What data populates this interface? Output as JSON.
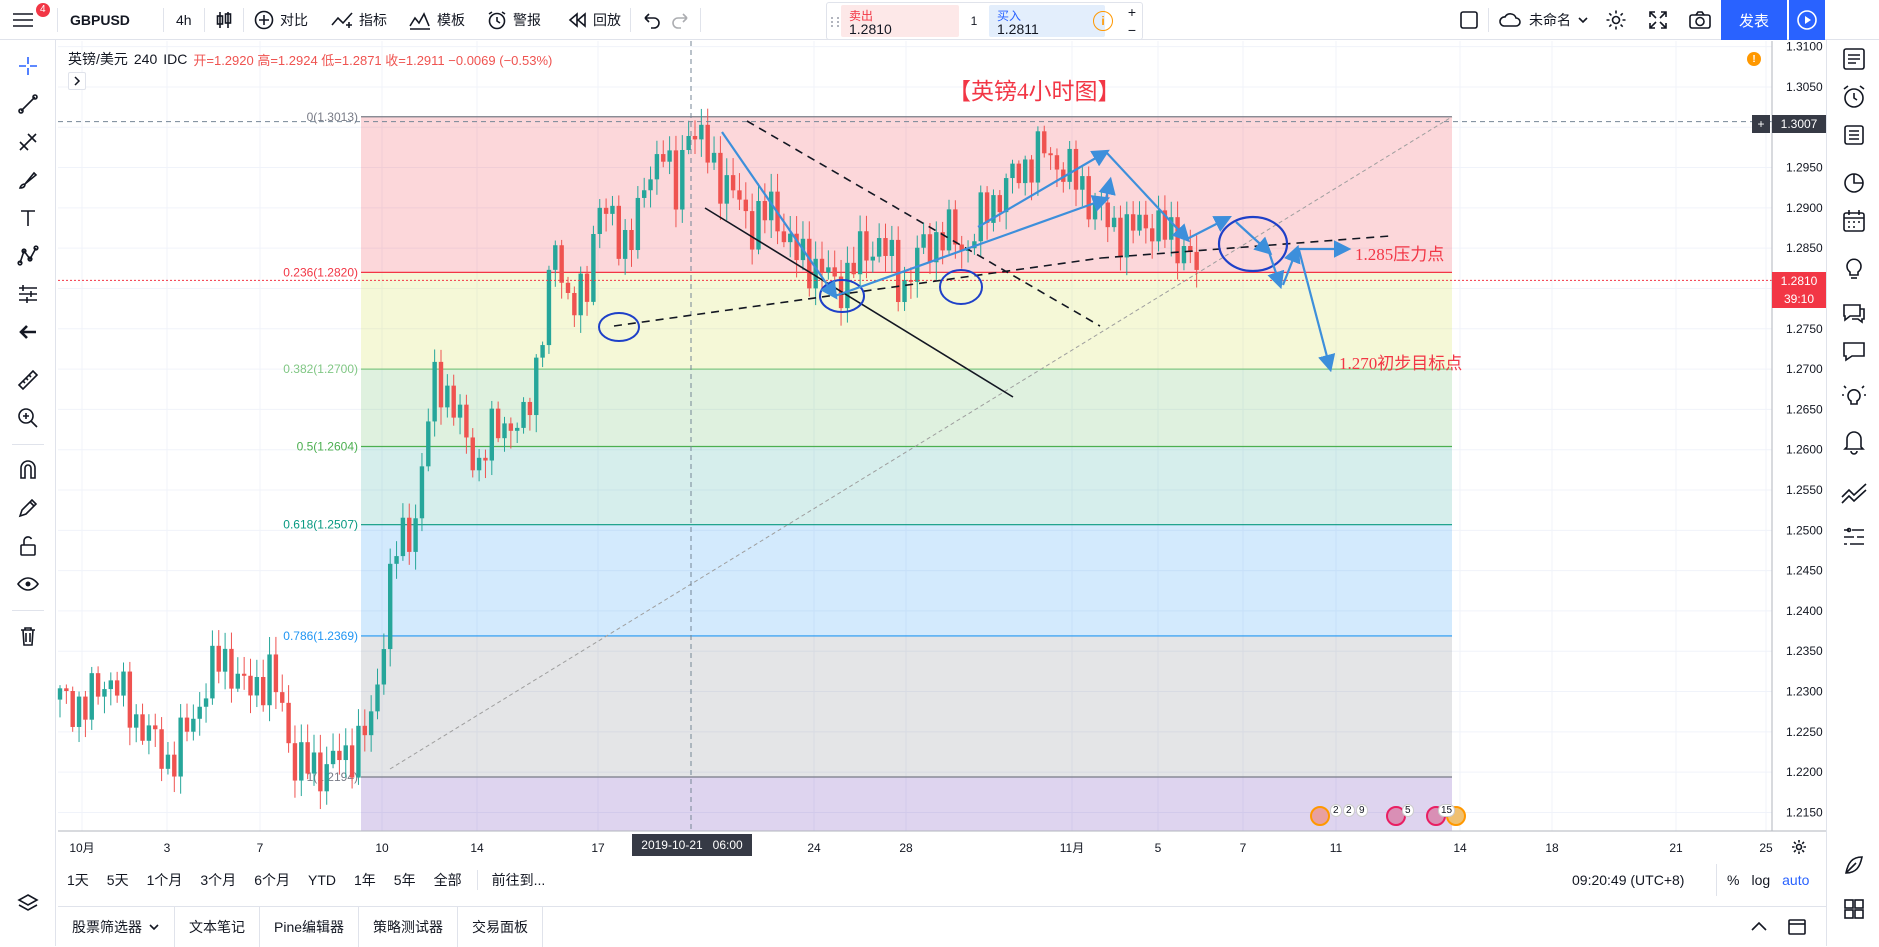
{
  "toolbar": {
    "menu_badge": "4",
    "symbol": "GBPUSD",
    "interval": "4h",
    "compare_label": "对比",
    "indicators_label": "指标",
    "templates_label": "模板",
    "alert_label": "警报",
    "replay_label": "回放",
    "sell_label": "卖出",
    "sell_price": "1.2810",
    "spread": "1",
    "buy_label": "买入",
    "buy_price": "1.2811",
    "layout_name": "未命名",
    "publish_label": "发表"
  },
  "legend": {
    "pair": "英镑/美元",
    "interval": "240",
    "source": "IDC",
    "ohlc": "开=1.2920 高=1.2924 低=1.2871 收=1.2911 −0.0069 (−0.53%)"
  },
  "annotations": {
    "title": "【英镑4小时图】",
    "resistance": "1.285压力点",
    "target": "1.270初步目标点"
  },
  "fib_levels": [
    {
      "label": "0(1.3013)",
      "price": 1.3013,
      "color": "#787b86"
    },
    {
      "label": "0.236(1.2820)",
      "price": 1.282,
      "color": "#f23645"
    },
    {
      "label": "0.382(1.2700)",
      "price": 1.27,
      "color": "#81c784"
    },
    {
      "label": "0.5(1.2604)",
      "price": 1.2604,
      "color": "#4caf50"
    },
    {
      "label": "0.618(1.2507)",
      "price": 1.2507,
      "color": "#089981"
    },
    {
      "label": "0.786(1.2369)",
      "price": 1.2369,
      "color": "#2196f3"
    },
    {
      "label": "1(1.2194)",
      "price": 1.2194,
      "color": "#787b86"
    }
  ],
  "price_axis": {
    "ticks": [
      "1.3100",
      "1.3050",
      "1.3000",
      "1.2950",
      "1.2900",
      "1.2850",
      "1.2800",
      "1.2750",
      "1.2700",
      "1.2650",
      "1.2600",
      "1.2550",
      "1.2500",
      "1.2450",
      "1.2400",
      "1.2350",
      "1.2300",
      "1.2250",
      "1.2200",
      "1.2150"
    ],
    "crosshair_price": "1.3007",
    "last_price": "1.2810",
    "countdown": "39:10"
  },
  "time_axis": {
    "ticks": [
      "10月",
      "3",
      "7",
      "10",
      "14",
      "17",
      "24",
      "28",
      "11月",
      "5",
      "7",
      "11",
      "14",
      "18",
      "21",
      "25"
    ],
    "crosshair_time": "2019-10-21   06:00"
  },
  "event_badges": [
    "2",
    "2",
    "9",
    "5",
    "15"
  ],
  "ranges": [
    "1天",
    "5天",
    "1个月",
    "3个月",
    "6个月",
    "YTD",
    "1年",
    "5年",
    "全部",
    "前往到..."
  ],
  "clock": "09:20:49 (UTC+8)",
  "scale_options": [
    "%",
    "log",
    "auto"
  ],
  "bottom_tabs": [
    "股票筛选器",
    "文本笔记",
    "Pine编辑器",
    "策略测试器",
    "交易面板"
  ],
  "colors": {
    "up": "#26a69a",
    "down": "#ef5350",
    "accent": "#2962ff",
    "annotation": "#f23645",
    "arrow": "#3d8fdb"
  }
}
